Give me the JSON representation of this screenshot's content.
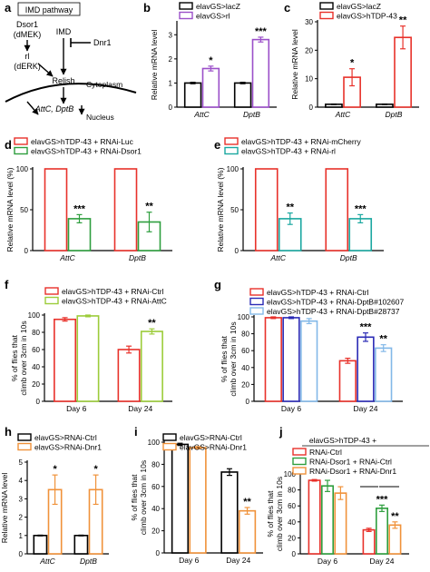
{
  "panels": [
    {
      "id": "a",
      "letter": "a",
      "title": "IMD pathway"
    },
    {
      "id": "b",
      "letter": "b"
    },
    {
      "id": "c",
      "letter": "c"
    },
    {
      "id": "d",
      "letter": "d"
    },
    {
      "id": "e",
      "letter": "e"
    },
    {
      "id": "f",
      "letter": "f"
    },
    {
      "id": "g",
      "letter": "g"
    },
    {
      "id": "h",
      "letter": "h"
    },
    {
      "id": "i",
      "letter": "i"
    },
    {
      "id": "j",
      "letter": "j"
    }
  ],
  "diagram": {
    "title": "IMD pathway",
    "nodes": {
      "dsor1": "Dsor1",
      "dmek": "(dMEK)",
      "rl": "rl",
      "derk": "(dERK)",
      "imd": "IMD",
      "dnr1": "Dnr1",
      "relish": "Relish",
      "targets": "AttC, DptB",
      "cytoplasm": "Cytoplasm",
      "nucleus": "Nucleus"
    }
  },
  "colors": {
    "black": "#000000",
    "purple": "#9b4fc9",
    "red": "#e8312a",
    "green": "#2e9e3e",
    "teal": "#1aa7a0",
    "lime": "#9ccc3a",
    "blue": "#2a2ab5",
    "lightblue": "#82b8e8",
    "orange": "#f0923a"
  },
  "chart_data": [
    {
      "panel": "b",
      "type": "bar",
      "ylabel": "Relative mRNA level",
      "ylim": [
        0,
        3.5
      ],
      "yticks": [
        0,
        1,
        2,
        3
      ],
      "categories": [
        "AttC",
        "DptB"
      ],
      "legend": [
        "elavGS>lacZ",
        "elavGS>rl"
      ],
      "series": [
        {
          "name": "elavGS>lacZ",
          "color": "#000000",
          "values": [
            1,
            1
          ],
          "errors": [
            0.03,
            0.03
          ]
        },
        {
          "name": "elavGS>rl",
          "color": "#9b4fc9",
          "values": [
            1.6,
            2.8
          ],
          "errors": [
            0.1,
            0.1
          ]
        }
      ],
      "significance": [
        "*",
        "***"
      ]
    },
    {
      "panel": "c",
      "type": "bar",
      "ylabel": "Relative mRNA level",
      "ylim": [
        0,
        30
      ],
      "yticks": [
        0,
        10,
        20,
        30
      ],
      "categories": [
        "AttC",
        "DptB"
      ],
      "legend": [
        "elavGS>lacZ",
        "elavGS>hTDP-43"
      ],
      "series": [
        {
          "name": "elavGS>lacZ",
          "color": "#000000",
          "values": [
            1,
            1
          ],
          "errors": [
            0.1,
            0.1
          ]
        },
        {
          "name": "elavGS>hTDP-43",
          "color": "#e8312a",
          "values": [
            10.5,
            24.5
          ],
          "errors": [
            3,
            4
          ]
        }
      ],
      "significance": [
        "*",
        "**"
      ]
    },
    {
      "panel": "d",
      "type": "bar",
      "ylabel": "Relative mRNA level (%)",
      "ylim": [
        0,
        100
      ],
      "yticks": [
        0,
        50,
        100
      ],
      "categories": [
        "AttC",
        "DptB"
      ],
      "legend": [
        "elavGS>hTDP-43 + RNAi-Luc",
        "elavGS>hTDP-43 + RNAi-Dsor1"
      ],
      "series": [
        {
          "name": "elavGS>hTDP-43 + RNAi-Luc",
          "color": "#e8312a",
          "values": [
            100,
            100
          ],
          "errors": [
            0,
            0
          ]
        },
        {
          "name": "elavGS>hTDP-43 + RNAi-Dsor1",
          "color": "#2e9e3e",
          "values": [
            39,
            35
          ],
          "errors": [
            5,
            12
          ]
        }
      ],
      "significance": [
        "***",
        "**"
      ]
    },
    {
      "panel": "e",
      "type": "bar",
      "ylabel": "Relative mRNA level (%)",
      "ylim": [
        0,
        100
      ],
      "yticks": [
        0,
        50,
        100
      ],
      "categories": [
        "AttC",
        "DptB"
      ],
      "legend": [
        "elavGS>hTDP-43 + RNAi-mCherry",
        "elavGS>hTDP-43 + RNAi-rl"
      ],
      "series": [
        {
          "name": "elavGS>hTDP-43 + RNAi-mCherry",
          "color": "#e8312a",
          "values": [
            100,
            100
          ],
          "errors": [
            0,
            0
          ]
        },
        {
          "name": "elavGS>hTDP-43 + RNAi-rl",
          "color": "#1aa7a0",
          "values": [
            39,
            39
          ],
          "errors": [
            7,
            5
          ]
        }
      ],
      "significance": [
        "**",
        "***"
      ]
    },
    {
      "panel": "f",
      "type": "bar",
      "ylabel": "% of flies that climb over 3cm in 10s",
      "ylim": [
        0,
        100
      ],
      "yticks": [
        0,
        20,
        40,
        60,
        80,
        100
      ],
      "categories": [
        "Day 6",
        "Day 24"
      ],
      "legend": [
        "elavGS>hTDP-43 + RNAi-Ctrl",
        "elavGS>hTDP-43 + RNAi-AttC"
      ],
      "series": [
        {
          "name": "elavGS>hTDP-43 + RNAi-Ctrl",
          "color": "#e8312a",
          "values": [
            95,
            60
          ],
          "errors": [
            2,
            4
          ]
        },
        {
          "name": "elavGS>hTDP-43 + RNAi-AttC",
          "color": "#9ccc3a",
          "values": [
            99,
            81
          ],
          "errors": [
            1,
            3
          ]
        }
      ],
      "significance": [
        "",
        "**"
      ]
    },
    {
      "panel": "g",
      "type": "bar",
      "ylabel": "% of flies that climb over 3cm in 10s",
      "ylim": [
        0,
        100
      ],
      "yticks": [
        0,
        20,
        40,
        60,
        80,
        100
      ],
      "categories": [
        "Day 6",
        "Day 24"
      ],
      "legend": [
        "elavGS>hTDP-43 + RNAi-Ctrl",
        "elavGS>hTDP-43 + RNAi-DptB#102607",
        "elavGS>hTDP-43 + RNAi-DptB#28737"
      ],
      "series": [
        {
          "name": "elavGS>hTDP-43 + RNAi-Ctrl",
          "color": "#e8312a",
          "values": [
            99,
            48
          ],
          "errors": [
            1,
            3
          ]
        },
        {
          "name": "elavGS>hTDP-43 + RNAi-DptB#102607",
          "color": "#2a2ab5",
          "values": [
            99,
            76
          ],
          "errors": [
            1,
            5
          ]
        },
        {
          "name": "elavGS>hTDP-43 + RNAi-DptB#28737",
          "color": "#82b8e8",
          "values": [
            95,
            63
          ],
          "errors": [
            3,
            4
          ]
        }
      ],
      "significance": [
        "",
        "***",
        "**"
      ]
    },
    {
      "panel": "h",
      "type": "bar",
      "ylabel": "Relative mRNA level",
      "ylim": [
        0,
        5
      ],
      "yticks": [
        0,
        1,
        2,
        3,
        4,
        5
      ],
      "categories": [
        "AttC",
        "DptB"
      ],
      "legend": [
        "elavGS>RNAi-Ctrl",
        "elavGS>RNAi-Dnr1"
      ],
      "series": [
        {
          "name": "elavGS>RNAi-Ctrl",
          "color": "#000000",
          "values": [
            1,
            1
          ],
          "errors": [
            0.02,
            0.02
          ]
        },
        {
          "name": "elavGS>RNAi-Dnr1",
          "color": "#f0923a",
          "values": [
            3.5,
            3.5
          ],
          "errors": [
            0.8,
            0.8
          ]
        }
      ],
      "significance": [
        "*",
        "*"
      ]
    },
    {
      "panel": "i",
      "type": "bar",
      "ylabel": "% of flies that climb over 3cm in 10s",
      "ylim": [
        0,
        100
      ],
      "yticks": [
        0,
        20,
        40,
        60,
        80,
        100
      ],
      "categories": [
        "Day 6",
        "Day 24"
      ],
      "legend": [
        "elavGS>RNAi-Ctrl",
        "elavGS>RNAi-Dnr1"
      ],
      "series": [
        {
          "name": "elavGS>RNAi-Ctrl",
          "color": "#000000",
          "values": [
            98,
            73
          ],
          "errors": [
            1,
            3
          ]
        },
        {
          "name": "elavGS>RNAi-Dnr1",
          "color": "#f0923a",
          "values": [
            95,
            38
          ],
          "errors": [
            1,
            3
          ]
        }
      ],
      "significance": [
        "",
        "**"
      ]
    },
    {
      "panel": "j",
      "type": "bar",
      "ylabel": "% of flies that climb over 3cm in 10s",
      "ylim": [
        0,
        100
      ],
      "yticks": [
        0,
        20,
        40,
        60,
        80,
        100
      ],
      "categories": [
        "Day 6",
        "Day 24"
      ],
      "legend_title": "elavGS>hTDP-43 +",
      "legend": [
        "RNAi-Ctrl",
        "RNAi-Dsor1 + RNAi-Ctrl",
        "RNAi-Dsor1 + RNAi-Dnr1"
      ],
      "series": [
        {
          "name": "RNAi-Ctrl",
          "color": "#e8312a",
          "values": [
            92,
            30
          ],
          "errors": [
            1,
            2
          ]
        },
        {
          "name": "RNAi-Dsor1 + RNAi-Ctrl",
          "color": "#2e9e3e",
          "values": [
            85,
            57
          ],
          "errors": [
            7,
            4
          ]
        },
        {
          "name": "RNAi-Dsor1 + RNAi-Dnr1",
          "color": "#f0923a",
          "values": [
            76,
            36
          ],
          "errors": [
            8,
            4
          ]
        }
      ],
      "significance": [
        "",
        "***",
        "**"
      ]
    }
  ]
}
